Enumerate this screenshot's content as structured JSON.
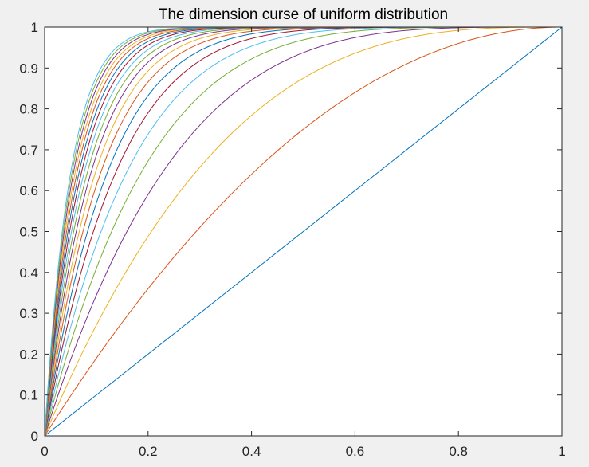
{
  "chart_data": {
    "type": "line",
    "title": "The dimension curse of uniform distribution",
    "xlabel": "",
    "ylabel": "",
    "xlim": [
      0,
      1
    ],
    "ylim": [
      0,
      1
    ],
    "x_ticks": [
      0,
      0.2,
      0.4,
      0.6,
      0.8,
      1
    ],
    "x_tick_labels": [
      "0",
      "0.2",
      "0.4",
      "0.6",
      "0.8",
      "1"
    ],
    "y_ticks": [
      0,
      0.1,
      0.2,
      0.3,
      0.4,
      0.5,
      0.6,
      0.7,
      0.8,
      0.9,
      1
    ],
    "y_tick_labels": [
      "0",
      "0.1",
      "0.2",
      "0.3",
      "0.4",
      "0.5",
      "0.6",
      "0.7",
      "0.8",
      "0.9",
      "1"
    ],
    "grid": false,
    "legend": "none",
    "curve_family": "y = 1 - (1 - x)^d",
    "dimensions": [
      1,
      2,
      3,
      4,
      5,
      6,
      7,
      8,
      9,
      10,
      11,
      12,
      13,
      14,
      15,
      16,
      17,
      18,
      19,
      20
    ],
    "series_colors": [
      "#0072bd",
      "#d95319",
      "#edb120",
      "#7e2f8e",
      "#77ac30",
      "#4dbeee",
      "#a2142f"
    ],
    "axis_color": "#262626",
    "plot_background": "#ffffff",
    "figure_background": "#f0f0f0"
  }
}
